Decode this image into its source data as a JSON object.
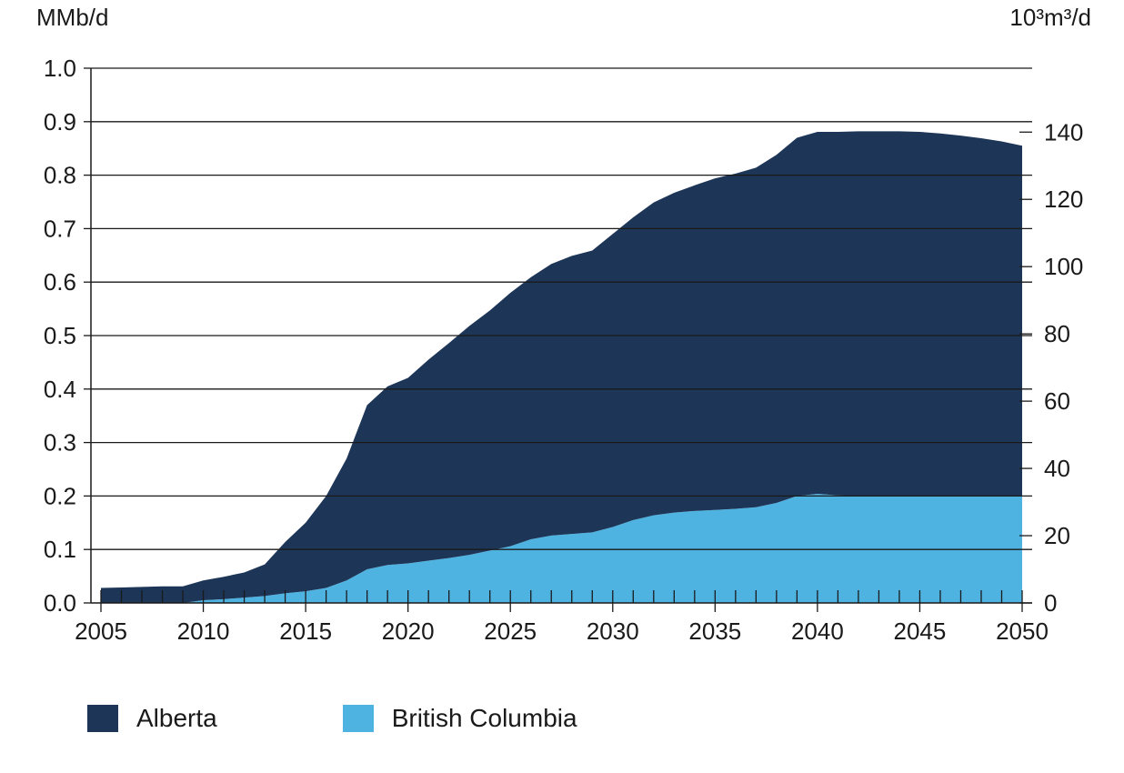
{
  "chart_data": {
    "type": "area",
    "stacked": true,
    "title": "",
    "ylabel": "MMb/d",
    "ylabel_right": "10³m³/d",
    "x": [
      2005,
      2006,
      2007,
      2008,
      2009,
      2010,
      2011,
      2012,
      2013,
      2014,
      2015,
      2016,
      2017,
      2018,
      2019,
      2020,
      2021,
      2022,
      2023,
      2024,
      2025,
      2026,
      2027,
      2028,
      2029,
      2030,
      2031,
      2032,
      2033,
      2034,
      2035,
      2036,
      2037,
      2038,
      2039,
      2040,
      2041,
      2042,
      2043,
      2044,
      2045,
      2046,
      2047,
      2048,
      2049,
      2050
    ],
    "xlim": [
      2005,
      2050
    ],
    "ylim": [
      0,
      1.0
    ],
    "ylim_right": [
      0,
      159
    ],
    "xticks": [
      "2005",
      "2010",
      "2015",
      "2020",
      "2025",
      "2030",
      "2035",
      "2040",
      "2045",
      "2050"
    ],
    "yticks": [
      "0.0",
      "0.1",
      "0.2",
      "0.3",
      "0.4",
      "0.5",
      "0.6",
      "0.7",
      "0.8",
      "0.9",
      "1.0"
    ],
    "yticks_right": [
      "0",
      "20",
      "40",
      "60",
      "80",
      "100",
      "120",
      "140"
    ],
    "grid": true,
    "legend_position": "bottom-left",
    "series": [
      {
        "name": "British Columbia",
        "color": "#4fb3e1",
        "values": [
          0,
          0,
          0,
          0,
          0,
          0.005,
          0.007,
          0.01,
          0.013,
          0.018,
          0.022,
          0.028,
          0.042,
          0.063,
          0.071,
          0.074,
          0.079,
          0.084,
          0.09,
          0.098,
          0.106,
          0.119,
          0.126,
          0.129,
          0.132,
          0.142,
          0.155,
          0.164,
          0.169,
          0.172,
          0.174,
          0.176,
          0.179,
          0.187,
          0.2,
          0.204,
          0.201,
          0.2,
          0.2,
          0.2,
          0.2,
          0.2,
          0.2,
          0.2,
          0.2,
          0.2
        ]
      },
      {
        "name": "Alberta",
        "color": "#1d3557",
        "values": [
          0.028,
          0.029,
          0.03,
          0.031,
          0.031,
          0.037,
          0.042,
          0.047,
          0.059,
          0.096,
          0.128,
          0.172,
          0.228,
          0.307,
          0.334,
          0.347,
          0.376,
          0.402,
          0.428,
          0.449,
          0.474,
          0.49,
          0.508,
          0.52,
          0.527,
          0.548,
          0.566,
          0.585,
          0.598,
          0.609,
          0.62,
          0.627,
          0.635,
          0.651,
          0.67,
          0.677,
          0.68,
          0.682,
          0.682,
          0.682,
          0.681,
          0.678,
          0.674,
          0.669,
          0.663,
          0.655
        ]
      }
    ]
  }
}
